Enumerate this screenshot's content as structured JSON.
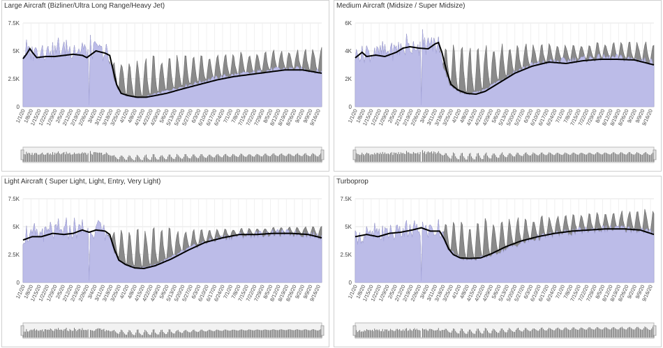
{
  "colors": {
    "area": "#bcbce8",
    "area_stroke": "#a6a6dc",
    "band": "#8a8a8a",
    "band_stroke": "#6a6a6a",
    "line": "#000000",
    "grid": "#e4e4e4",
    "axis_text": "#444444",
    "nav_bg": "#f2f2f2",
    "nav_border": "#bbbbbb",
    "nav_bar": "#555555"
  },
  "chart_data": [
    {
      "type": "area",
      "title": "Large Aircraft (Bizliner/Ultra Long Range/Heavy Jet)",
      "ylim": [
        0,
        7500
      ],
      "yticks": [
        0,
        2500,
        5000,
        7500
      ],
      "ytick_labels": [
        "0",
        "2.5K",
        "5K",
        "7.5K"
      ],
      "xtick_labels": [
        "1/1/20",
        "1/8/20",
        "1/15/20",
        "1/22/20",
        "1/29/20",
        "2/5/20",
        "2/12/20",
        "2/19/20",
        "2/26/20",
        "3/4/20",
        "3/11/20",
        "3/18/20",
        "3/25/20",
        "4/1/20",
        "4/8/20",
        "4/15/20",
        "4/22/20",
        "4/29/20",
        "5/6/20",
        "5/13/20",
        "5/20/20",
        "5/27/20",
        "6/3/20",
        "6/10/20",
        "6/17/20",
        "6/24/20",
        "7/1/20",
        "7/8/20",
        "7/15/20",
        "7/22/20",
        "7/29/20",
        "8/5/20",
        "8/12/20",
        "8/19/20",
        "8/26/20",
        "9/2/20",
        "9/9/20",
        "9/16/20"
      ],
      "base_curve": [
        [
          0,
          4600
        ],
        [
          8,
          4700
        ],
        [
          16,
          4900
        ],
        [
          24,
          4800
        ],
        [
          32,
          4900
        ],
        [
          40,
          5000
        ],
        [
          48,
          4900
        ],
        [
          56,
          4800
        ],
        [
          64,
          4950
        ],
        [
          71,
          4700
        ],
        [
          76,
          4000
        ],
        [
          79,
          2800
        ],
        [
          83,
          1500
        ],
        [
          90,
          1000
        ],
        [
          98,
          800
        ],
        [
          106,
          850
        ],
        [
          115,
          1100
        ],
        [
          125,
          1400
        ],
        [
          140,
          1800
        ],
        [
          155,
          2200
        ],
        [
          170,
          2600
        ],
        [
          185,
          2850
        ],
        [
          200,
          3000
        ],
        [
          215,
          3250
        ],
        [
          230,
          3400
        ],
        [
          245,
          3350
        ],
        [
          262,
          3100
        ]
      ],
      "line_curve": [
        [
          0,
          4300
        ],
        [
          3,
          4700
        ],
        [
          6,
          5200
        ],
        [
          8,
          4900
        ],
        [
          12,
          4400
        ],
        [
          20,
          4500
        ],
        [
          28,
          4500
        ],
        [
          36,
          4600
        ],
        [
          44,
          4700
        ],
        [
          52,
          4600
        ],
        [
          56,
          4400
        ],
        [
          60,
          4700
        ],
        [
          64,
          5000
        ],
        [
          72,
          4800
        ],
        [
          76,
          4600
        ],
        [
          79,
          3300
        ],
        [
          82,
          2000
        ],
        [
          86,
          1200
        ],
        [
          92,
          1000
        ],
        [
          100,
          850
        ],
        [
          108,
          850
        ],
        [
          116,
          1000
        ],
        [
          126,
          1200
        ],
        [
          140,
          1600
        ],
        [
          155,
          2000
        ],
        [
          170,
          2400
        ],
        [
          185,
          2700
        ],
        [
          200,
          2900
        ],
        [
          215,
          3100
        ],
        [
          230,
          3300
        ],
        [
          245,
          3300
        ],
        [
          262,
          3000
        ]
      ],
      "weekly_peaks": [
        [
          76,
          4000
        ],
        [
          262,
          5200
        ]
      ],
      "pre_covid_end_day": 76,
      "covid_spike_day": 58
    },
    {
      "type": "area",
      "title": "Medium Aircraft (Midsize / Super Midsize)",
      "ylim": [
        0,
        6000
      ],
      "yticks": [
        0,
        2000,
        4000,
        6000
      ],
      "ytick_labels": [
        "0",
        "2K",
        "4K",
        "6K"
      ],
      "xtick_labels": [
        "1/1/20",
        "1/8/20",
        "1/15/20",
        "1/22/20",
        "1/29/20",
        "2/5/20",
        "2/12/20",
        "2/19/20",
        "2/26/20",
        "3/4/20",
        "3/11/20",
        "3/18/20",
        "3/25/20",
        "4/1/20",
        "4/8/20",
        "4/15/20",
        "4/22/20",
        "4/29/20",
        "5/6/20",
        "5/13/20",
        "5/20/20",
        "5/27/20",
        "6/3/20",
        "6/10/20",
        "6/17/20",
        "6/24/20",
        "7/1/20",
        "7/8/20",
        "7/15/20",
        "7/22/20",
        "7/29/20",
        "8/5/20",
        "8/12/20",
        "8/19/20",
        "8/26/20",
        "9/2/20",
        "9/9/20",
        "9/16/20"
      ],
      "base_curve": [
        [
          0,
          3600
        ],
        [
          10,
          3700
        ],
        [
          20,
          3700
        ],
        [
          30,
          3800
        ],
        [
          40,
          4000
        ],
        [
          50,
          4200
        ],
        [
          60,
          4300
        ],
        [
          70,
          4300
        ],
        [
          74,
          4000
        ],
        [
          78,
          2600
        ],
        [
          84,
          1400
        ],
        [
          92,
          1000
        ],
        [
          100,
          900
        ],
        [
          110,
          1100
        ],
        [
          125,
          1800
        ],
        [
          140,
          2500
        ],
        [
          155,
          3000
        ],
        [
          170,
          3200
        ],
        [
          185,
          3300
        ],
        [
          200,
          3400
        ],
        [
          215,
          3500
        ],
        [
          230,
          3500
        ],
        [
          245,
          3400
        ],
        [
          262,
          3200
        ]
      ],
      "line_curve": [
        [
          0,
          3500
        ],
        [
          6,
          3900
        ],
        [
          10,
          3600
        ],
        [
          18,
          3700
        ],
        [
          26,
          3600
        ],
        [
          36,
          3900
        ],
        [
          42,
          4200
        ],
        [
          48,
          4300
        ],
        [
          56,
          4200
        ],
        [
          64,
          4150
        ],
        [
          70,
          4500
        ],
        [
          73,
          4600
        ],
        [
          76,
          3900
        ],
        [
          80,
          2600
        ],
        [
          84,
          1600
        ],
        [
          90,
          1200
        ],
        [
          98,
          950
        ],
        [
          106,
          900
        ],
        [
          114,
          1100
        ],
        [
          126,
          1700
        ],
        [
          140,
          2400
        ],
        [
          155,
          2900
        ],
        [
          170,
          3200
        ],
        [
          185,
          3100
        ],
        [
          200,
          3300
        ],
        [
          215,
          3400
        ],
        [
          230,
          3400
        ],
        [
          245,
          3350
        ],
        [
          262,
          3000
        ]
      ],
      "weekly_peaks": [
        [
          74,
          4200
        ],
        [
          262,
          4600
        ]
      ],
      "pre_covid_end_day": 74,
      "covid_spike_day": 58
    },
    {
      "type": "area",
      "title": "Light Aircraft ( Super Light, Light, Entry, Very Light)",
      "ylim": [
        0,
        7500
      ],
      "yticks": [
        0,
        2500,
        5000,
        7500
      ],
      "ytick_labels": [
        "0",
        "2.5K",
        "5K",
        "7.5K"
      ],
      "xtick_labels": [
        "1/1/20",
        "1/8/20",
        "1/15/20",
        "1/22/20",
        "1/29/20",
        "2/5/20",
        "2/12/20",
        "2/19/20",
        "2/26/20",
        "3/4/20",
        "3/11/20",
        "3/18/20",
        "3/25/20",
        "4/1/20",
        "4/8/20",
        "4/15/20",
        "4/22/20",
        "4/29/20",
        "5/6/20",
        "5/13/20",
        "5/20/20",
        "5/27/20",
        "6/3/20",
        "6/10/20",
        "6/17/20",
        "6/24/20",
        "7/1/20",
        "7/8/20",
        "7/15/20",
        "7/22/20",
        "7/29/20",
        "8/5/20",
        "8/12/20",
        "8/19/20",
        "8/26/20",
        "9/2/20",
        "9/9/20",
        "9/16/20"
      ],
      "base_curve": [
        [
          0,
          3900
        ],
        [
          12,
          4100
        ],
        [
          24,
          4300
        ],
        [
          36,
          4400
        ],
        [
          48,
          4500
        ],
        [
          60,
          4600
        ],
        [
          70,
          4500
        ],
        [
          75,
          4200
        ],
        [
          80,
          2800
        ],
        [
          86,
          1800
        ],
        [
          94,
          1400
        ],
        [
          104,
          1300
        ],
        [
          116,
          1600
        ],
        [
          130,
          2200
        ],
        [
          145,
          3000
        ],
        [
          160,
          3600
        ],
        [
          175,
          4000
        ],
        [
          190,
          4200
        ],
        [
          205,
          4300
        ],
        [
          220,
          4400
        ],
        [
          235,
          4400
        ],
        [
          250,
          4300
        ],
        [
          262,
          4100
        ]
      ],
      "line_curve": [
        [
          0,
          3800
        ],
        [
          8,
          4100
        ],
        [
          16,
          4100
        ],
        [
          26,
          4400
        ],
        [
          36,
          4300
        ],
        [
          44,
          4400
        ],
        [
          52,
          4700
        ],
        [
          58,
          4500
        ],
        [
          64,
          4700
        ],
        [
          72,
          4600
        ],
        [
          76,
          4300
        ],
        [
          80,
          3000
        ],
        [
          84,
          2000
        ],
        [
          90,
          1600
        ],
        [
          98,
          1300
        ],
        [
          106,
          1250
        ],
        [
          116,
          1500
        ],
        [
          130,
          2100
        ],
        [
          145,
          2900
        ],
        [
          160,
          3600
        ],
        [
          175,
          4000
        ],
        [
          190,
          4300
        ],
        [
          205,
          4300
        ],
        [
          220,
          4400
        ],
        [
          235,
          4400
        ],
        [
          250,
          4300
        ],
        [
          262,
          4000
        ]
      ],
      "weekly_peaks": [
        [
          75,
          4500
        ],
        [
          262,
          5000
        ]
      ],
      "pre_covid_end_day": 75,
      "covid_spike_day": 58
    },
    {
      "type": "area",
      "title": "Turboprop",
      "ylim": [
        0,
        7500
      ],
      "yticks": [
        0,
        2500,
        5000,
        7500
      ],
      "ytick_labels": [
        "0",
        "2.5K",
        "5K",
        "7.5K"
      ],
      "xtick_labels": [
        "1/1/20",
        "1/8/20",
        "1/15/20",
        "1/22/20",
        "1/29/20",
        "2/5/20",
        "2/12/20",
        "2/19/20",
        "2/26/20",
        "3/4/20",
        "3/11/20",
        "3/18/20",
        "3/25/20",
        "4/1/20",
        "4/8/20",
        "4/15/20",
        "4/22/20",
        "4/29/20",
        "5/6/20",
        "5/13/20",
        "5/20/20",
        "5/27/20",
        "6/3/20",
        "6/10/20",
        "6/17/20",
        "6/24/20",
        "7/1/20",
        "7/8/20",
        "7/15/20",
        "7/22/20",
        "7/29/20",
        "8/5/20",
        "8/12/20",
        "8/19/20",
        "8/26/20",
        "9/2/20",
        "9/9/20",
        "9/16/20"
      ],
      "base_curve": [
        [
          0,
          3900
        ],
        [
          12,
          4000
        ],
        [
          24,
          4200
        ],
        [
          36,
          4300
        ],
        [
          48,
          4400
        ],
        [
          60,
          4500
        ],
        [
          70,
          4500
        ],
        [
          76,
          4200
        ],
        [
          82,
          3000
        ],
        [
          88,
          2400
        ],
        [
          96,
          2100
        ],
        [
          106,
          2100
        ],
        [
          118,
          2400
        ],
        [
          130,
          2900
        ],
        [
          145,
          3500
        ],
        [
          160,
          4000
        ],
        [
          175,
          4300
        ],
        [
          190,
          4500
        ],
        [
          205,
          4700
        ],
        [
          220,
          4800
        ],
        [
          235,
          4800
        ],
        [
          250,
          4700
        ],
        [
          262,
          4400
        ]
      ],
      "line_curve": [
        [
          0,
          4100
        ],
        [
          10,
          4300
        ],
        [
          20,
          4100
        ],
        [
          30,
          4400
        ],
        [
          40,
          4500
        ],
        [
          50,
          4700
        ],
        [
          58,
          4900
        ],
        [
          66,
          4600
        ],
        [
          74,
          4600
        ],
        [
          78,
          3900
        ],
        [
          82,
          3000
        ],
        [
          86,
          2500
        ],
        [
          92,
          2200
        ],
        [
          100,
          2150
        ],
        [
          110,
          2200
        ],
        [
          120,
          2600
        ],
        [
          132,
          3200
        ],
        [
          145,
          3700
        ],
        [
          160,
          4100
        ],
        [
          175,
          4400
        ],
        [
          190,
          4600
        ],
        [
          205,
          4700
        ],
        [
          220,
          4800
        ],
        [
          235,
          4800
        ],
        [
          250,
          4700
        ],
        [
          262,
          4300
        ]
      ],
      "weekly_peaks": [
        [
          78,
          5200
        ],
        [
          262,
          6500
        ]
      ],
      "pre_covid_end_day": 78,
      "covid_spike_day": 58
    }
  ]
}
